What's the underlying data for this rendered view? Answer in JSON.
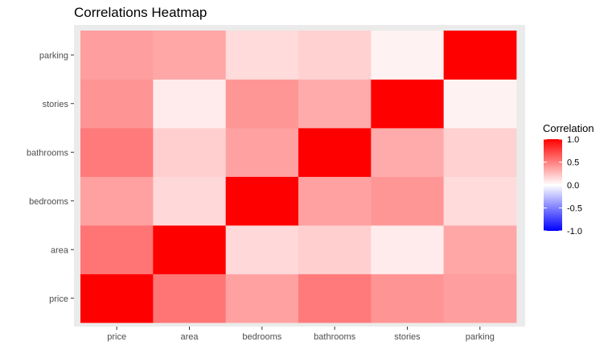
{
  "chart_data": {
    "type": "heatmap",
    "title": "Correlations Heatmap",
    "xlabel": "",
    "ylabel": "",
    "x_categories": [
      "price",
      "area",
      "bedrooms",
      "bathrooms",
      "stories",
      "parking"
    ],
    "y_categories": [
      "price",
      "area",
      "bedrooms",
      "bathrooms",
      "stories",
      "parking"
    ],
    "values": [
      [
        1.0,
        0.54,
        0.37,
        0.52,
        0.42,
        0.38
      ],
      [
        0.54,
        1.0,
        0.15,
        0.19,
        0.08,
        0.35
      ],
      [
        0.37,
        0.15,
        1.0,
        0.37,
        0.41,
        0.14
      ],
      [
        0.52,
        0.19,
        0.37,
        1.0,
        0.33,
        0.18
      ],
      [
        0.42,
        0.08,
        0.41,
        0.33,
        1.0,
        0.05
      ],
      [
        0.38,
        0.35,
        0.14,
        0.18,
        0.05,
        1.0
      ]
    ],
    "legend": {
      "title": "Correlation",
      "breaks": [
        "1.0",
        "0.5",
        "0.0",
        "-0.5",
        "-1.0"
      ],
      "break_values": [
        1.0,
        0.5,
        0.0,
        -0.5,
        -1.0
      ],
      "range": [
        -1,
        1
      ],
      "low_color": "#0000ff",
      "mid_color": "#ffffff",
      "high_color": "#ff0000",
      "placement": "right"
    },
    "panel_background": "#ebebeb"
  }
}
